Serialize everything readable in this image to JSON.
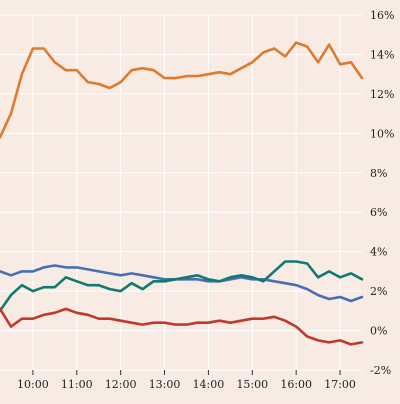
{
  "colors": {
    "background": "#f7ebe4",
    "grid": "#ffffff",
    "text": "#222222"
  },
  "chart_data": {
    "type": "line",
    "title": "",
    "xlabel": "",
    "ylabel": "",
    "grid": "on",
    "legend": "none",
    "xlim": [
      "09:15",
      "17:30"
    ],
    "ylim": [
      -2,
      16
    ],
    "x_ticks": [
      "10:00",
      "11:00",
      "12:00",
      "13:00",
      "14:00",
      "15:00",
      "16:00",
      "17:00"
    ],
    "y_ticks": [
      "-2%",
      "0%",
      "2%",
      "4%",
      "6%",
      "8%",
      "10%",
      "12%",
      "14%",
      "16%"
    ],
    "x": [
      "09:15",
      "09:30",
      "09:45",
      "10:00",
      "10:15",
      "10:30",
      "10:45",
      "11:00",
      "11:15",
      "11:30",
      "11:45",
      "12:00",
      "12:15",
      "12:30",
      "12:45",
      "13:00",
      "13:15",
      "13:30",
      "13:45",
      "14:00",
      "14:15",
      "14:30",
      "14:45",
      "15:00",
      "15:15",
      "15:30",
      "15:45",
      "16:00",
      "16:15",
      "16:30",
      "16:45",
      "17:00",
      "17:15",
      "17:30"
    ],
    "series": [
      {
        "color": "#e07b2e",
        "values": [
          9.8,
          11.0,
          13.0,
          14.3,
          14.3,
          13.6,
          13.2,
          13.2,
          12.6,
          12.5,
          12.3,
          12.6,
          13.2,
          13.3,
          13.2,
          12.8,
          12.8,
          12.9,
          12.9,
          13.0,
          13.1,
          13.0,
          13.3,
          13.6,
          14.1,
          14.3,
          13.9,
          14.6,
          14.4,
          13.6,
          14.5,
          13.5,
          13.6,
          12.8
        ]
      },
      {
        "color": "#4a6eb4",
        "values": [
          3.0,
          2.8,
          3.0,
          3.0,
          3.2,
          3.3,
          3.2,
          3.2,
          3.1,
          3.0,
          2.9,
          2.8,
          2.9,
          2.8,
          2.7,
          2.6,
          2.6,
          2.6,
          2.6,
          2.5,
          2.5,
          2.6,
          2.7,
          2.6,
          2.6,
          2.5,
          2.4,
          2.3,
          2.1,
          1.8,
          1.6,
          1.7,
          1.5,
          1.7
        ]
      },
      {
        "color": "#107a6e",
        "values": [
          1.0,
          1.8,
          2.3,
          2.0,
          2.2,
          2.2,
          2.7,
          2.5,
          2.3,
          2.3,
          2.1,
          2.0,
          2.4,
          2.1,
          2.5,
          2.5,
          2.6,
          2.7,
          2.8,
          2.6,
          2.5,
          2.7,
          2.8,
          2.7,
          2.5,
          3.0,
          3.5,
          3.5,
          3.4,
          2.7,
          3.0,
          2.7,
          2.9,
          2.6
        ]
      },
      {
        "color": "#c0392b",
        "values": [
          1.1,
          0.2,
          0.6,
          0.6,
          0.8,
          0.9,
          1.1,
          0.9,
          0.8,
          0.6,
          0.6,
          0.5,
          0.4,
          0.3,
          0.4,
          0.4,
          0.3,
          0.3,
          0.4,
          0.4,
          0.5,
          0.4,
          0.5,
          0.6,
          0.6,
          0.7,
          0.5,
          0.2,
          -0.3,
          -0.5,
          -0.6,
          -0.5,
          -0.7,
          -0.6
        ]
      }
    ]
  }
}
